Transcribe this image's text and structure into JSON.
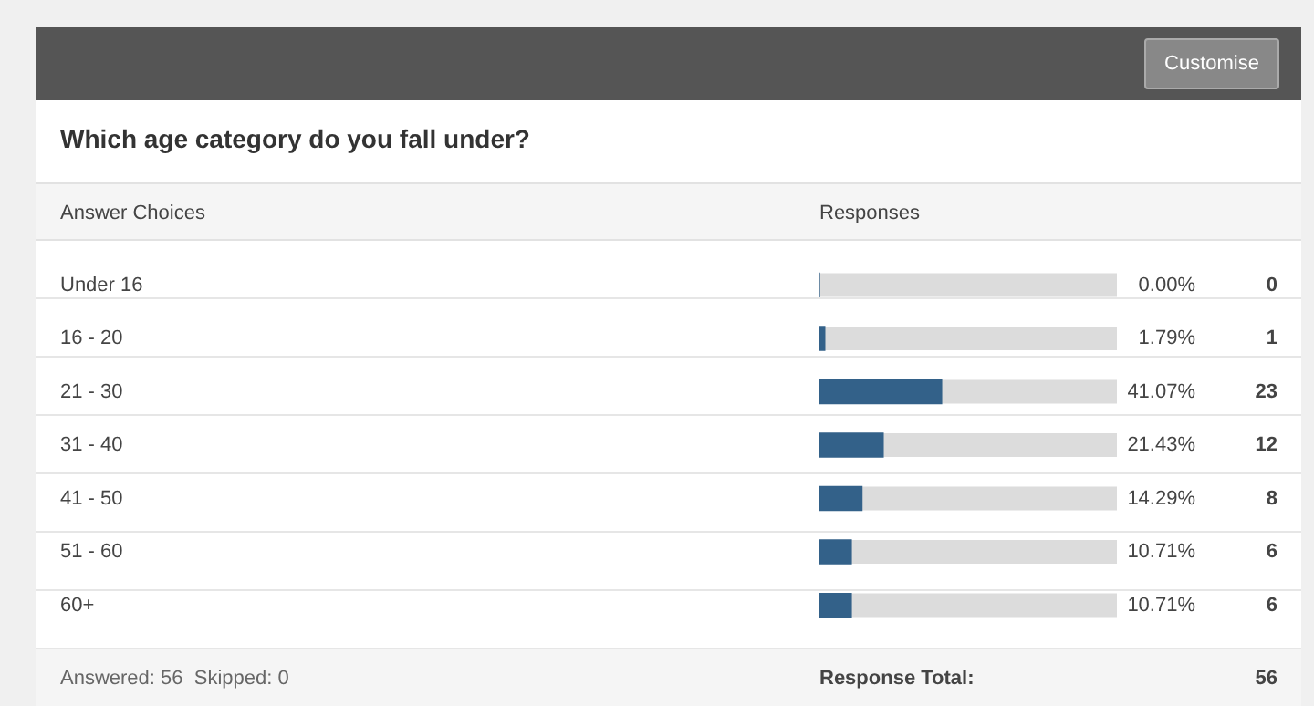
{
  "chart_data": {
    "type": "bar",
    "orientation": "horizontal",
    "title": "Which age category do you fall under?",
    "ylabel": "Answer Choices",
    "xlabel": "Responses",
    "categories": [
      "Under 16",
      "16 - 20",
      "21 - 30",
      "31 - 40",
      "41 - 50",
      "51 - 60",
      "60+"
    ],
    "values": [
      0.0,
      1.79,
      41.07,
      21.43,
      14.29,
      10.71,
      10.71
    ],
    "value_labels": [
      "0.00%",
      "1.79%",
      "41.07%",
      "21.43%",
      "14.29%",
      "10.71%",
      "10.71%"
    ],
    "color": "#336189",
    "xlim": [
      0,
      100
    ],
    "tick_labels": "y",
    "grid": false,
    "legend": false,
    "annotations": [
      "Customise",
      "Answered: 56  Skipped: 0",
      "Response Total:",
      "56",
      "0",
      "1",
      "23",
      "12",
      "8",
      "6",
      "6"
    ]
  }
}
